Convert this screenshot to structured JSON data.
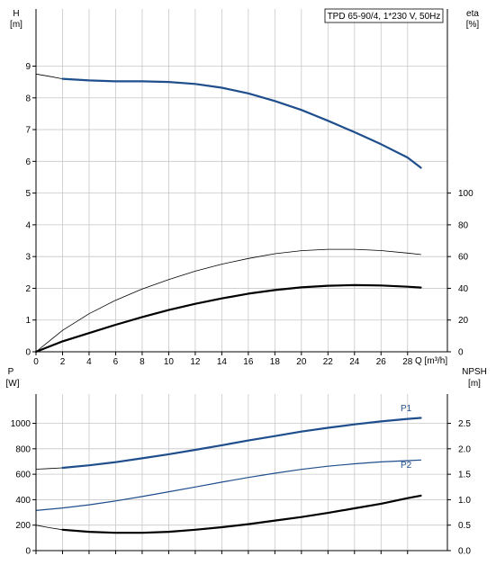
{
  "chart_data": [
    {
      "type": "line",
      "id": "top",
      "title": "TPD 65-90/4, 1*230 V, 50Hz",
      "x_label": "Q [m³/h]",
      "y_left_label": "H",
      "y_left_unit": "[m]",
      "y_right_label": "eta",
      "y_right_unit": "[%]",
      "x_ticks": [
        0,
        2,
        4,
        6,
        8,
        10,
        12,
        14,
        16,
        18,
        20,
        22,
        24,
        26,
        28
      ],
      "xlim": [
        0,
        31
      ],
      "y_left_ticks": [
        0,
        1,
        2,
        3,
        4,
        5,
        6,
        7,
        8,
        9
      ],
      "y_left_lim": [
        0,
        10.8
      ],
      "y_right_ticks": [
        0,
        20,
        40,
        60,
        80,
        100
      ],
      "y_right_lim": [
        0,
        216
      ],
      "grid": true,
      "series": [
        {
          "key": "H",
          "axis": "left",
          "style": "thin",
          "color": "#000000",
          "points": [
            [
              0,
              8.75
            ],
            [
              1,
              8.68
            ],
            [
              2,
              8.6
            ]
          ]
        },
        {
          "key": "H",
          "axis": "left",
          "style": "blue-thick",
          "color": "#1f4e8c",
          "points": [
            [
              2,
              8.6
            ],
            [
              4,
              8.55
            ],
            [
              6,
              8.52
            ],
            [
              8,
              8.52
            ],
            [
              10,
              8.5
            ],
            [
              12,
              8.44
            ],
            [
              14,
              8.32
            ],
            [
              16,
              8.14
            ],
            [
              18,
              7.9
            ],
            [
              20,
              7.62
            ],
            [
              22,
              7.28
            ],
            [
              24,
              6.92
            ],
            [
              26,
              6.54
            ],
            [
              28,
              6.12
            ],
            [
              29,
              5.8
            ]
          ]
        },
        {
          "key": "eta-thin",
          "axis": "right",
          "style": "thin",
          "color": "#000000",
          "points": [
            [
              0,
              0
            ],
            [
              2,
              13.5
            ],
            [
              4,
              24
            ],
            [
              6,
              32.5
            ],
            [
              8,
              39.5
            ],
            [
              10,
              45.5
            ],
            [
              12,
              50.8
            ],
            [
              14,
              55.2
            ],
            [
              16,
              58.8
            ],
            [
              18,
              61.8
            ],
            [
              20,
              63.7
            ],
            [
              22,
              64.6
            ],
            [
              24,
              64.6
            ],
            [
              26,
              63.8
            ],
            [
              28,
              62.2
            ],
            [
              29,
              61.3
            ]
          ]
        },
        {
          "key": "eta",
          "axis": "right",
          "style": "black-thick",
          "color": "#000000",
          "points": [
            [
              0,
              0
            ],
            [
              2,
              6.6
            ]
          ]
        },
        {
          "key": "eta",
          "axis": "right",
          "style": "black-thick",
          "color": "#000000",
          "points": [
            [
              2,
              6.6
            ],
            [
              4,
              11.8
            ],
            [
              6,
              17
            ],
            [
              8,
              21.9
            ],
            [
              10,
              26.3
            ],
            [
              12,
              30.2
            ],
            [
              14,
              33.6
            ],
            [
              16,
              36.6
            ],
            [
              18,
              38.9
            ],
            [
              20,
              40.6
            ],
            [
              22,
              41.6
            ],
            [
              24,
              42
            ],
            [
              26,
              41.8
            ],
            [
              28,
              41
            ],
            [
              29,
              40.5
            ]
          ]
        }
      ]
    },
    {
      "type": "line",
      "id": "bottom",
      "y_left_label": "P",
      "y_left_unit": "[W]",
      "y_right_label": "NPSH",
      "y_right_unit": "[m]",
      "x_ticks": [
        0,
        2,
        4,
        6,
        8,
        10,
        12,
        14,
        16,
        18,
        20,
        22,
        24,
        26,
        28
      ],
      "xlim": [
        0,
        31
      ],
      "y_left_ticks": [
        0,
        200,
        400,
        600,
        800,
        1000
      ],
      "y_left_lim": [
        0,
        1230
      ],
      "y_right_ticks": [
        "0.0",
        "0.5",
        "1.0",
        "1.5",
        "2.0",
        "2.5"
      ],
      "y_right_lim": [
        0,
        3.075
      ],
      "grid": true,
      "series": [
        {
          "key": "P1",
          "label": "P1",
          "axis": "left",
          "style": "thin",
          "color": "#000000",
          "points": [
            [
              0,
              640
            ],
            [
              1,
              645
            ],
            [
              2,
              650
            ]
          ]
        },
        {
          "key": "P1",
          "label": "P1",
          "axis": "left",
          "style": "blue-thick",
          "color": "#1f4e8c",
          "points": [
            [
              2,
              650
            ],
            [
              4,
              670
            ],
            [
              6,
              695
            ],
            [
              8,
              725
            ],
            [
              10,
              757
            ],
            [
              12,
              792
            ],
            [
              14,
              828
            ],
            [
              16,
              865
            ],
            [
              18,
              900
            ],
            [
              20,
              935
            ],
            [
              22,
              965
            ],
            [
              24,
              992
            ],
            [
              26,
              1015
            ],
            [
              28,
              1035
            ],
            [
              29,
              1043
            ]
          ]
        },
        {
          "key": "P2",
          "label": "P2",
          "axis": "left",
          "style": "blue-thin",
          "color": "#1f4e8c",
          "points": [
            [
              0,
              315
            ],
            [
              2,
              335
            ],
            [
              4,
              360
            ],
            [
              6,
              390
            ],
            [
              8,
              425
            ],
            [
              10,
              462
            ],
            [
              12,
              500
            ],
            [
              14,
              538
            ],
            [
              16,
              575
            ],
            [
              18,
              608
            ],
            [
              20,
              638
            ],
            [
              22,
              663
            ],
            [
              24,
              682
            ],
            [
              26,
              697
            ],
            [
              28,
              707
            ],
            [
              29,
              712
            ]
          ]
        },
        {
          "key": "NPSH",
          "axis": "right",
          "style": "thin",
          "color": "#000000",
          "points": [
            [
              0,
              0.5
            ],
            [
              1,
              0.45
            ],
            [
              2,
              0.41
            ]
          ]
        },
        {
          "key": "NPSH",
          "axis": "right",
          "style": "black-thick",
          "color": "#000000",
          "points": [
            [
              2,
              0.41
            ],
            [
              4,
              0.37
            ],
            [
              6,
              0.35
            ],
            [
              8,
              0.35
            ],
            [
              10,
              0.37
            ],
            [
              12,
              0.41
            ],
            [
              14,
              0.46
            ],
            [
              16,
              0.52
            ],
            [
              18,
              0.59
            ],
            [
              20,
              0.66
            ],
            [
              22,
              0.74
            ],
            [
              24,
              0.83
            ],
            [
              26,
              0.92
            ],
            [
              28,
              1.03
            ],
            [
              29,
              1.08
            ]
          ]
        }
      ]
    }
  ]
}
